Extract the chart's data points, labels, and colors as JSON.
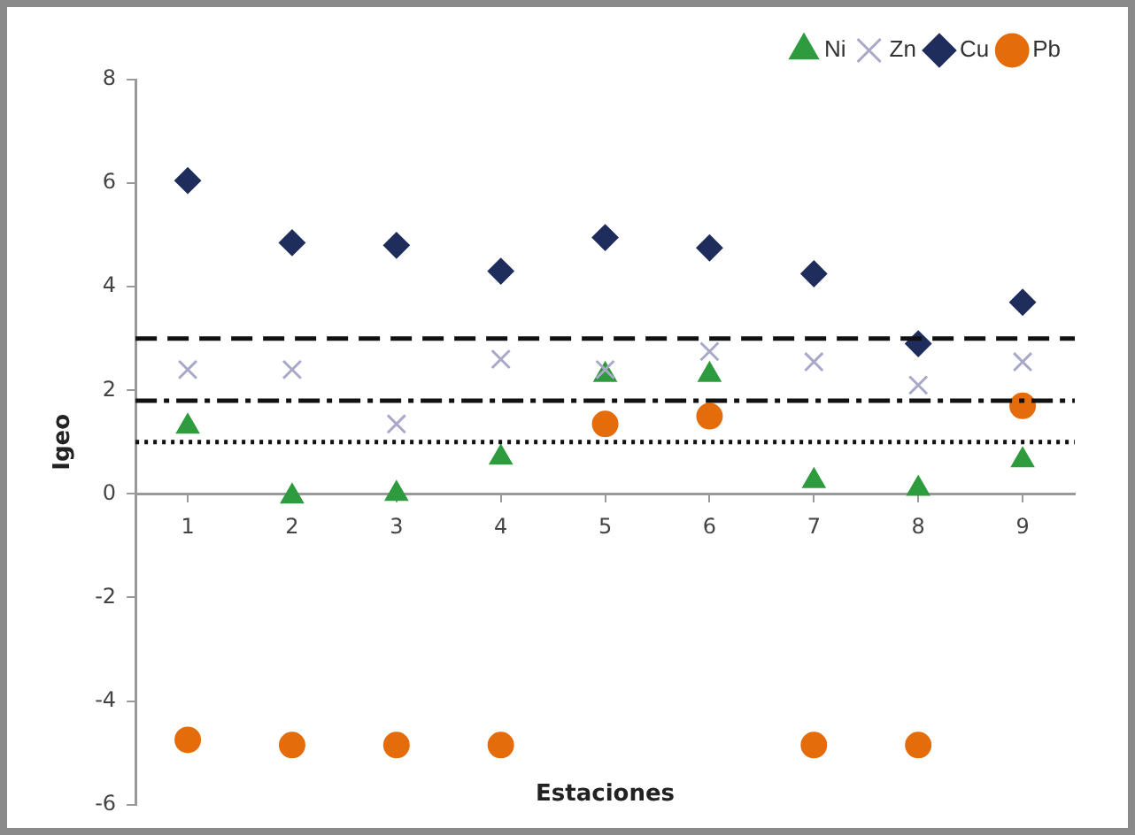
{
  "chart_data": {
    "type": "scatter",
    "xlabel": "Estaciones",
    "ylabel": "Igeo",
    "categories": [
      "1",
      "2",
      "3",
      "4",
      "5",
      "6",
      "7",
      "8",
      "9"
    ],
    "series": [
      {
        "name": "Ni",
        "color": "#2e9b3e",
        "marker": "triangle",
        "values": [
          1.3,
          -0.05,
          0.0,
          0.7,
          2.3,
          2.3,
          0.25,
          0.1,
          0.65
        ]
      },
      {
        "name": "Zn",
        "color": "#a8a8c8",
        "marker": "cross",
        "values": [
          2.4,
          2.4,
          1.35,
          2.6,
          2.4,
          2.75,
          2.55,
          2.1,
          2.55
        ]
      },
      {
        "name": "Cu",
        "color": "#1f2d5c",
        "marker": "diamond",
        "values": [
          6.05,
          4.85,
          4.8,
          4.3,
          4.95,
          4.75,
          4.25,
          2.9,
          3.7
        ]
      },
      {
        "name": "Pb",
        "color": "#e46c0a",
        "marker": "circle",
        "values": [
          -4.75,
          -4.85,
          -4.85,
          -4.85,
          1.35,
          1.5,
          -4.85,
          -4.85,
          1.7
        ]
      }
    ],
    "ylim": [
      -6,
      8
    ],
    "yticks": [
      -6,
      -4,
      -2,
      0,
      2,
      4,
      6,
      8
    ],
    "ref_lines": [
      {
        "axis": "y",
        "value": 3,
        "color": "#111111",
        "line_style": "dashed"
      },
      {
        "axis": "y",
        "value": 1.8,
        "color": "#111111",
        "line_style": "dashdot"
      },
      {
        "axis": "y",
        "value": 1,
        "color": "#111111",
        "line_style": "dotted"
      }
    ],
    "grid": false,
    "legend": "top right"
  }
}
